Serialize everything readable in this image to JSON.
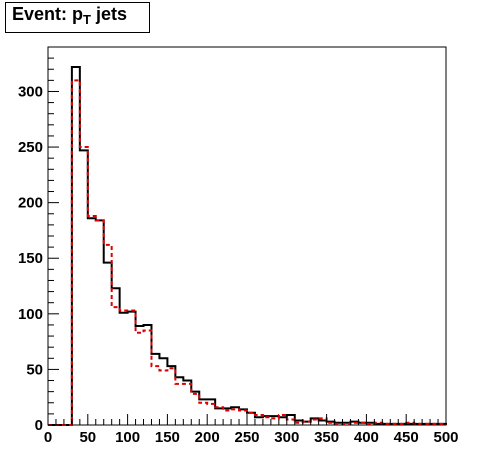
{
  "title": {
    "main": "Event: p",
    "subscript": "T",
    "rest": " jets"
  },
  "chart_data": {
    "type": "histogram",
    "title": "Event: pT jets",
    "xlabel": "",
    "ylabel": "",
    "xlim": [
      0,
      500
    ],
    "ylim": [
      0,
      340
    ],
    "x_ticks": [
      0,
      50,
      100,
      150,
      200,
      250,
      300,
      350,
      400,
      450,
      500
    ],
    "y_ticks": [
      0,
      50,
      100,
      150,
      200,
      250,
      300
    ],
    "grid": false,
    "legend": "none",
    "bin_edges": [
      0,
      10,
      20,
      30,
      40,
      50,
      60,
      70,
      80,
      90,
      100,
      110,
      120,
      130,
      140,
      150,
      160,
      170,
      180,
      190,
      200,
      210,
      220,
      230,
      240,
      250,
      260,
      270,
      280,
      290,
      300,
      310,
      320,
      330,
      340,
      350,
      360,
      370,
      380,
      390,
      400,
      410,
      420,
      430,
      440,
      450,
      460,
      470,
      480,
      490,
      500
    ],
    "series": [
      {
        "color": "#000000",
        "style": "solid",
        "values": [
          0,
          0,
          0,
          322,
          247,
          186,
          184,
          146,
          123,
          101,
          102,
          89,
          90,
          64,
          60,
          53,
          43,
          40,
          30,
          23,
          23,
          15,
          15,
          16,
          14,
          11,
          7,
          8,
          8,
          7,
          9,
          4,
          3,
          6,
          4,
          3,
          2,
          2,
          3,
          2,
          2,
          1,
          1,
          1,
          1,
          1,
          1,
          1,
          1,
          1
        ]
      },
      {
        "color": "#e00000",
        "style": "dashed",
        "values": [
          0,
          0,
          0,
          310,
          250,
          188,
          184,
          162,
          106,
          103,
          103,
          83,
          85,
          53,
          49,
          51,
          37,
          37,
          28,
          20,
          19,
          16,
          13,
          14,
          13,
          11,
          9,
          7,
          6,
          9,
          5,
          2,
          3,
          5,
          6,
          2,
          1,
          1,
          2,
          2,
          1,
          2,
          1,
          1,
          1,
          2,
          1,
          1,
          1,
          1
        ]
      }
    ]
  }
}
